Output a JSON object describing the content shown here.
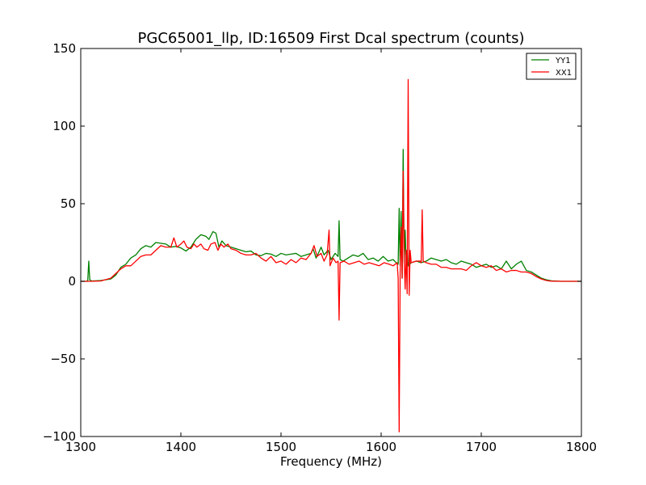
{
  "chart_data": {
    "type": "line",
    "title": "PGC65001_llp, ID:16509 First Dcal spectrum (counts)",
    "xlabel": "Frequency (MHz)",
    "ylabel": "",
    "xlim": [
      1300,
      1800
    ],
    "ylim": [
      -100,
      150
    ],
    "xticks": [
      1300,
      1400,
      1500,
      1600,
      1700,
      1800
    ],
    "yticks": [
      -100,
      -50,
      0,
      50,
      100,
      150
    ],
    "xtick_labels": [
      "1300",
      "1400",
      "1500",
      "1600",
      "1700",
      "1800"
    ],
    "ytick_labels": [
      "−100",
      "−50",
      "0",
      "50",
      "100",
      "150"
    ],
    "grid": false,
    "legend_position": "top-right",
    "series": [
      {
        "name": "YY1",
        "color": "#008000",
        "points": [
          [
            1300,
            0
          ],
          [
            1306,
            0
          ],
          [
            1307,
            0.5
          ],
          [
            1308,
            13
          ],
          [
            1309,
            1
          ],
          [
            1311,
            0.2
          ],
          [
            1320,
            0.5
          ],
          [
            1330,
            1.5
          ],
          [
            1335,
            4
          ],
          [
            1340,
            9
          ],
          [
            1345,
            11
          ],
          [
            1350,
            15
          ],
          [
            1355,
            17
          ],
          [
            1360,
            21
          ],
          [
            1365,
            23
          ],
          [
            1370,
            22
          ],
          [
            1375,
            25
          ],
          [
            1380,
            24.5
          ],
          [
            1385,
            24
          ],
          [
            1390,
            22
          ],
          [
            1395,
            22.5
          ],
          [
            1400,
            21.5
          ],
          [
            1405,
            19.5
          ],
          [
            1410,
            22
          ],
          [
            1415,
            27
          ],
          [
            1420,
            30
          ],
          [
            1425,
            29
          ],
          [
            1428,
            27
          ],
          [
            1432,
            32
          ],
          [
            1435,
            31
          ],
          [
            1438,
            22
          ],
          [
            1441,
            26
          ],
          [
            1445,
            23
          ],
          [
            1450,
            22
          ],
          [
            1455,
            21
          ],
          [
            1460,
            20
          ],
          [
            1465,
            19
          ],
          [
            1470,
            19.5
          ],
          [
            1475,
            17
          ],
          [
            1480,
            16.5
          ],
          [
            1485,
            18
          ],
          [
            1490,
            17.5
          ],
          [
            1495,
            16
          ],
          [
            1500,
            18
          ],
          [
            1505,
            17
          ],
          [
            1510,
            17.5
          ],
          [
            1515,
            18
          ],
          [
            1520,
            16
          ],
          [
            1525,
            17
          ],
          [
            1530,
            18
          ],
          [
            1532,
            21
          ],
          [
            1535,
            15
          ],
          [
            1538,
            19
          ],
          [
            1540,
            22
          ],
          [
            1543,
            17
          ],
          [
            1547,
            20
          ],
          [
            1550,
            14
          ],
          [
            1554,
            18
          ],
          [
            1557,
            16
          ],
          [
            1558,
            39
          ],
          [
            1559,
            14
          ],
          [
            1562,
            13
          ],
          [
            1567,
            15
          ],
          [
            1572,
            17
          ],
          [
            1577,
            16
          ],
          [
            1582,
            18
          ],
          [
            1587,
            14
          ],
          [
            1592,
            15
          ],
          [
            1597,
            13
          ],
          [
            1602,
            16
          ],
          [
            1607,
            13
          ],
          [
            1612,
            14
          ],
          [
            1615,
            12
          ],
          [
            1617,
            11
          ],
          [
            1618,
            47
          ],
          [
            1619,
            10
          ],
          [
            1620,
            45
          ],
          [
            1621,
            2
          ],
          [
            1622,
            85
          ],
          [
            1623,
            12
          ],
          [
            1624,
            33
          ],
          [
            1625,
            10
          ],
          [
            1626,
            20
          ],
          [
            1627,
            10
          ],
          [
            1630,
            12
          ],
          [
            1635,
            13
          ],
          [
            1640,
            12
          ],
          [
            1645,
            13
          ],
          [
            1650,
            15
          ],
          [
            1655,
            14
          ],
          [
            1660,
            13
          ],
          [
            1665,
            14
          ],
          [
            1670,
            12
          ],
          [
            1675,
            11
          ],
          [
            1680,
            13
          ],
          [
            1685,
            12
          ],
          [
            1690,
            11
          ],
          [
            1695,
            9
          ],
          [
            1700,
            10
          ],
          [
            1705,
            11
          ],
          [
            1710,
            9
          ],
          [
            1715,
            10
          ],
          [
            1720,
            8
          ],
          [
            1725,
            13
          ],
          [
            1730,
            8
          ],
          [
            1735,
            11
          ],
          [
            1740,
            13
          ],
          [
            1745,
            7
          ],
          [
            1750,
            6
          ],
          [
            1755,
            4
          ],
          [
            1760,
            2
          ],
          [
            1765,
            1
          ],
          [
            1770,
            0.3
          ],
          [
            1780,
            0
          ],
          [
            1800,
            0
          ]
        ]
      },
      {
        "name": "XX1",
        "color": "#ff0000",
        "points": [
          [
            1300,
            0
          ],
          [
            1310,
            0
          ],
          [
            1320,
            0.2
          ],
          [
            1330,
            2
          ],
          [
            1335,
            5
          ],
          [
            1340,
            8
          ],
          [
            1345,
            10
          ],
          [
            1350,
            10
          ],
          [
            1355,
            13
          ],
          [
            1360,
            16
          ],
          [
            1365,
            17
          ],
          [
            1370,
            17
          ],
          [
            1375,
            20
          ],
          [
            1380,
            23
          ],
          [
            1385,
            22
          ],
          [
            1390,
            22
          ],
          [
            1393,
            28
          ],
          [
            1396,
            22
          ],
          [
            1400,
            24
          ],
          [
            1403,
            26
          ],
          [
            1406,
            22
          ],
          [
            1410,
            21
          ],
          [
            1413,
            24
          ],
          [
            1416,
            22
          ],
          [
            1420,
            24
          ],
          [
            1423,
            21
          ],
          [
            1427,
            20
          ],
          [
            1430,
            24
          ],
          [
            1434,
            25
          ],
          [
            1437,
            20
          ],
          [
            1440,
            24
          ],
          [
            1443,
            22
          ],
          [
            1447,
            24
          ],
          [
            1450,
            21
          ],
          [
            1455,
            20
          ],
          [
            1460,
            18
          ],
          [
            1465,
            17
          ],
          [
            1470,
            17
          ],
          [
            1475,
            18
          ],
          [
            1480,
            15
          ],
          [
            1485,
            13
          ],
          [
            1490,
            16
          ],
          [
            1495,
            12
          ],
          [
            1500,
            13
          ],
          [
            1505,
            11
          ],
          [
            1510,
            14
          ],
          [
            1515,
            12
          ],
          [
            1520,
            15
          ],
          [
            1525,
            14
          ],
          [
            1530,
            18
          ],
          [
            1533,
            23
          ],
          [
            1536,
            16
          ],
          [
            1540,
            18
          ],
          [
            1543,
            13
          ],
          [
            1546,
            17
          ],
          [
            1548,
            33
          ],
          [
            1549,
            10
          ],
          [
            1552,
            15
          ],
          [
            1555,
            12
          ],
          [
            1557,
            13
          ],
          [
            1558,
            -25
          ],
          [
            1559,
            12
          ],
          [
            1563,
            13
          ],
          [
            1568,
            11
          ],
          [
            1573,
            12
          ],
          [
            1578,
            13
          ],
          [
            1583,
            11
          ],
          [
            1588,
            12
          ],
          [
            1593,
            11
          ],
          [
            1598,
            10
          ],
          [
            1603,
            12
          ],
          [
            1608,
            11
          ],
          [
            1612,
            10
          ],
          [
            1616,
            12
          ],
          [
            1617,
            2
          ],
          [
            1618,
            -97
          ],
          [
            1619,
            5
          ],
          [
            1620,
            35
          ],
          [
            1621,
            2
          ],
          [
            1622,
            71
          ],
          [
            1623,
            15
          ],
          [
            1624,
            -5
          ],
          [
            1625,
            20
          ],
          [
            1626,
            -8
          ],
          [
            1627,
            130
          ],
          [
            1628,
            -9
          ],
          [
            1629,
            20
          ],
          [
            1630,
            12
          ],
          [
            1635,
            13
          ],
          [
            1639,
            13
          ],
          [
            1640,
            12
          ],
          [
            1641,
            46
          ],
          [
            1642,
            13
          ],
          [
            1645,
            12
          ],
          [
            1650,
            11
          ],
          [
            1655,
            11
          ],
          [
            1660,
            9
          ],
          [
            1665,
            9
          ],
          [
            1670,
            8
          ],
          [
            1675,
            8
          ],
          [
            1680,
            8
          ],
          [
            1685,
            7
          ],
          [
            1690,
            10
          ],
          [
            1695,
            12
          ],
          [
            1700,
            10
          ],
          [
            1705,
            9
          ],
          [
            1710,
            10
          ],
          [
            1715,
            7
          ],
          [
            1720,
            8
          ],
          [
            1725,
            6
          ],
          [
            1730,
            7
          ],
          [
            1735,
            7
          ],
          [
            1740,
            6
          ],
          [
            1745,
            6
          ],
          [
            1750,
            5
          ],
          [
            1755,
            3
          ],
          [
            1760,
            1.5
          ],
          [
            1765,
            0.5
          ],
          [
            1770,
            0.1
          ],
          [
            1780,
            0
          ],
          [
            1800,
            0
          ]
        ]
      }
    ]
  }
}
